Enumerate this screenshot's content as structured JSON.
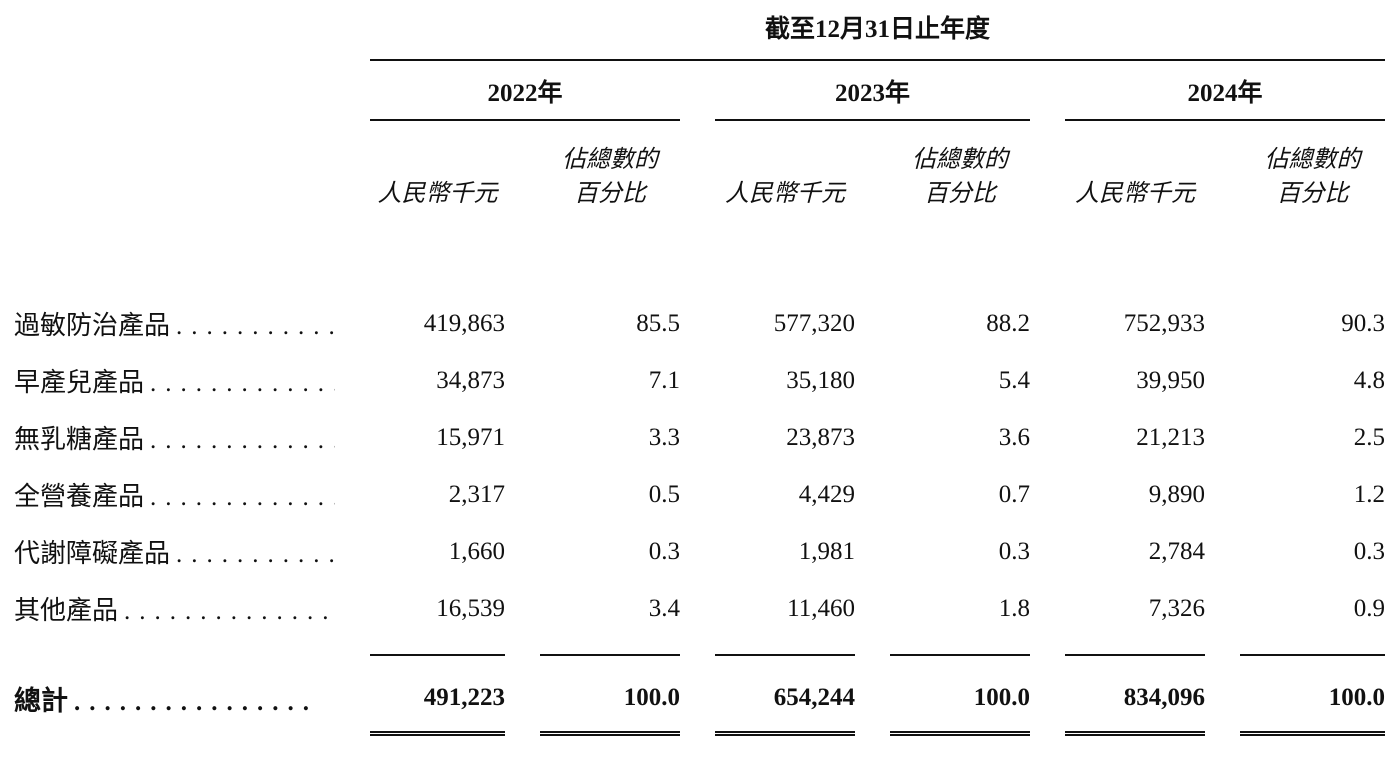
{
  "table": {
    "period_header": "截至12月31日止年度",
    "year_headers": [
      "2022年",
      "2023年",
      "2024年"
    ],
    "subheaders": {
      "amount": "人民幣千元",
      "pct_line1": "佔總數的",
      "pct_line2": "百分比"
    },
    "rows": [
      {
        "label": "過敏防治產品",
        "leader": "................",
        "values": [
          "419,863",
          "85.5",
          "577,320",
          "88.2",
          "752,933",
          "90.3"
        ]
      },
      {
        "label": "早產兒產品",
        "leader": "................",
        "values": [
          "34,873",
          "7.1",
          "35,180",
          "5.4",
          "39,950",
          "4.8"
        ]
      },
      {
        "label": "無乳糖產品",
        "leader": "................",
        "values": [
          "15,971",
          "3.3",
          "23,873",
          "3.6",
          "21,213",
          "2.5"
        ]
      },
      {
        "label": "全營養產品",
        "leader": "................",
        "values": [
          "2,317",
          "0.5",
          "4,429",
          "0.7",
          "9,890",
          "1.2"
        ]
      },
      {
        "label": "代謝障礙產品",
        "leader": "................",
        "values": [
          "1,660",
          "0.3",
          "1,981",
          "0.3",
          "2,784",
          "0.3"
        ]
      },
      {
        "label": "其他產品",
        "leader": "................",
        "values": [
          "16,539",
          "3.4",
          "11,460",
          "1.8",
          "7,326",
          "0.9"
        ]
      }
    ],
    "total_row": {
      "label": "總計",
      "leader": "................",
      "values": [
        "491,223",
        "100.0",
        "654,244",
        "100.0",
        "834,096",
        "100.0"
      ]
    }
  },
  "colors": {
    "text": "#111111",
    "background": "#ffffff",
    "rule": "#111111"
  }
}
